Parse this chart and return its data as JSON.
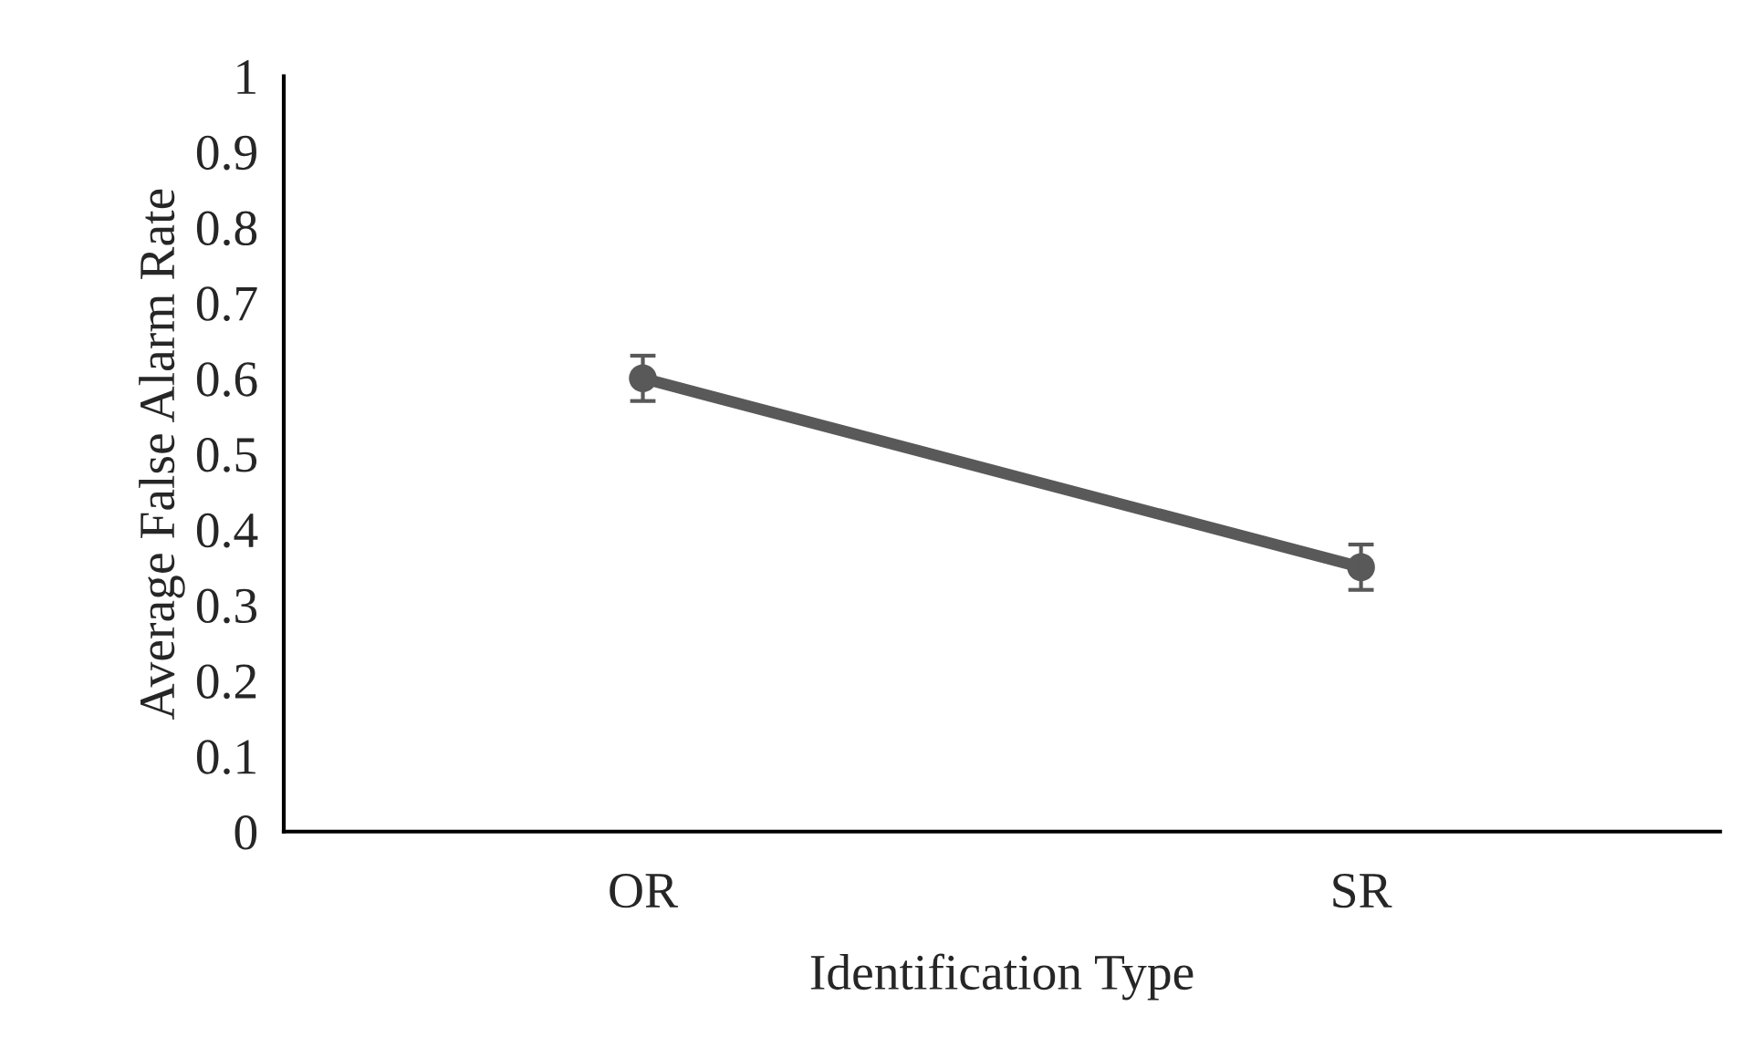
{
  "chart_data": {
    "type": "line",
    "xlabel": "Identification Type",
    "ylabel": "Average False Alarm Rate",
    "categories": [
      "OR",
      "SR"
    ],
    "series": [
      {
        "color": "#595959",
        "values": [
          0.6,
          0.35
        ],
        "errors": [
          0.03,
          0.03
        ]
      }
    ],
    "ylim": [
      0,
      1
    ],
    "yticks": [
      0,
      0.1,
      0.2,
      0.3,
      0.4,
      0.5,
      0.6,
      0.7,
      0.8,
      0.9,
      1
    ],
    "marker": "circle",
    "line_style": "solid",
    "grid": false,
    "legend": false
  }
}
